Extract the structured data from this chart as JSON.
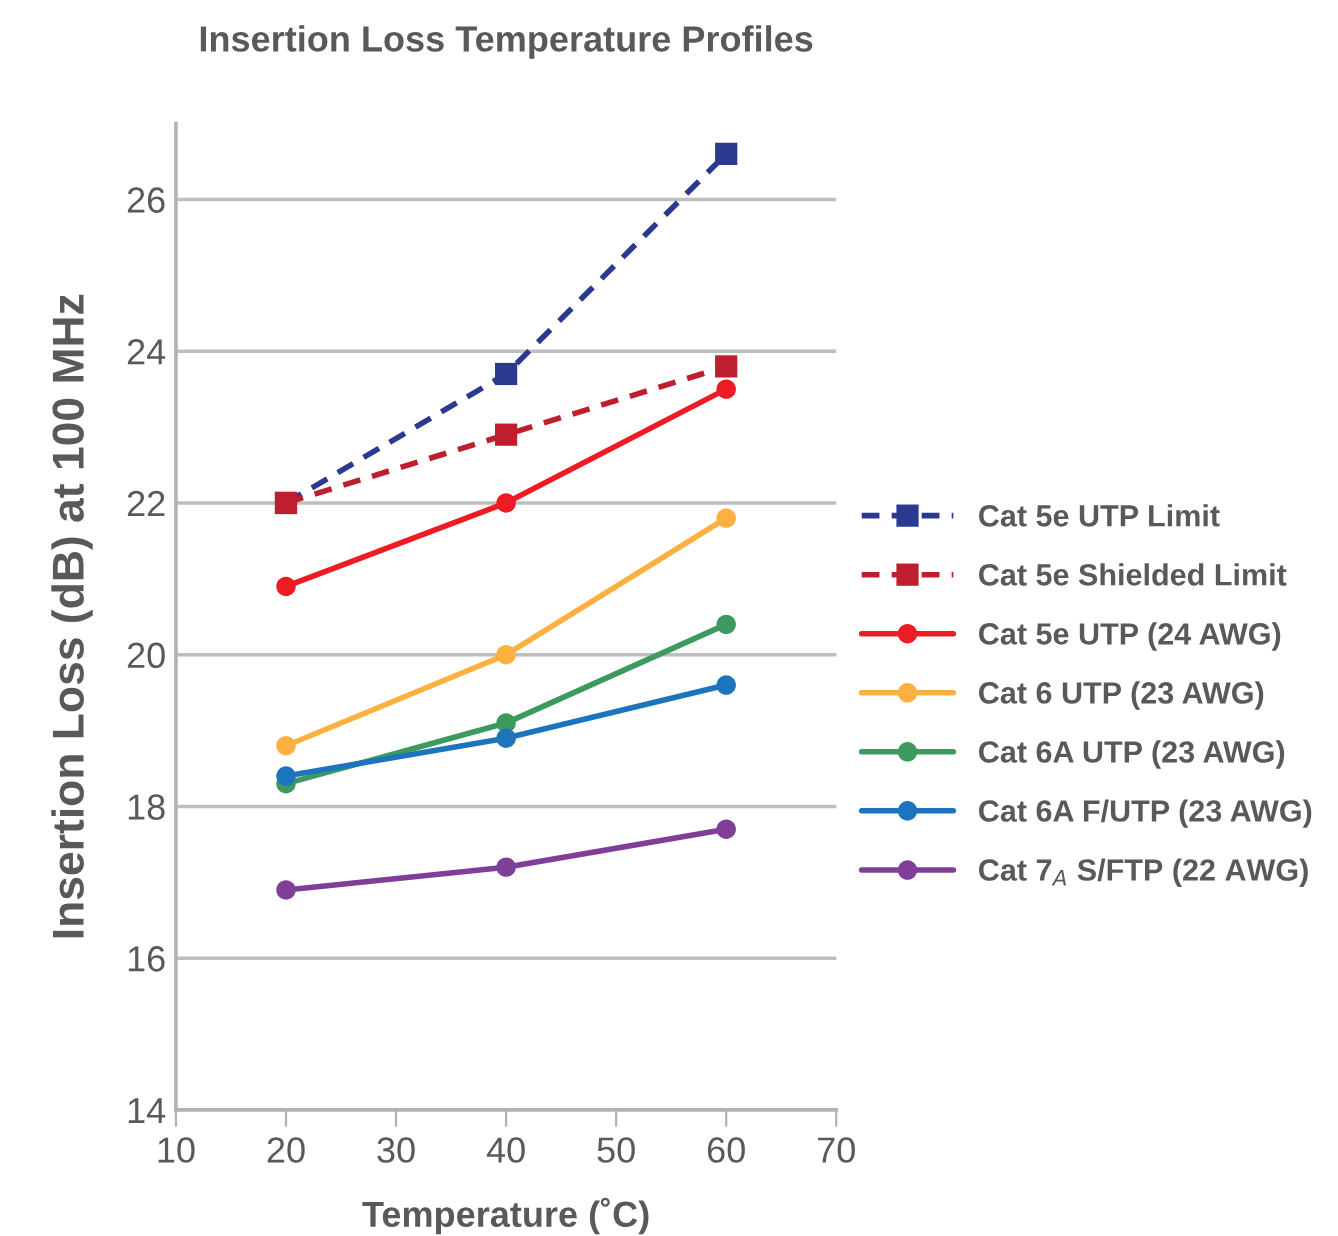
{
  "chart_data": {
    "type": "line",
    "title": "Insertion Loss Temperature Profiles",
    "xlabel": "Temperature (˚C)",
    "ylabel": "Insertion Loss (dB) at 100 MHz",
    "x": [
      20,
      40,
      60
    ],
    "xlim": [
      10,
      70
    ],
    "xticks": [
      10,
      20,
      30,
      40,
      50,
      60,
      70
    ],
    "ylim": [
      14,
      27
    ],
    "yticks": [
      14,
      16,
      18,
      20,
      22,
      24,
      26
    ],
    "grid": "y",
    "legend": "right",
    "series": [
      {
        "name": "Cat 5e UTP Limit",
        "color": "#2b3990",
        "values": [
          22.0,
          23.7,
          26.6
        ],
        "marker": "square",
        "line_style": "dashed"
      },
      {
        "name": "Cat 5e Shielded Limit",
        "color": "#be1e2d",
        "values": [
          22.0,
          22.9,
          23.8
        ],
        "marker": "square",
        "line_style": "dashed"
      },
      {
        "name": "Cat 5e UTP (24 AWG)",
        "color": "#ed1c24",
        "values": [
          20.9,
          22.0,
          23.5
        ],
        "marker": "circle",
        "line_style": "solid"
      },
      {
        "name": "Cat 6 UTP (23 AWG)",
        "color": "#fbb040",
        "values": [
          18.8,
          20.0,
          21.8
        ],
        "marker": "circle",
        "line_style": "solid"
      },
      {
        "name": "Cat 6A UTP (23 AWG)",
        "color": "#3c9a5f",
        "values": [
          18.3,
          19.1,
          20.4
        ],
        "marker": "circle",
        "line_style": "solid"
      },
      {
        "name": "Cat 6A F/UTP (23 AWG)",
        "color": "#1c75bc",
        "values": [
          18.4,
          18.9,
          19.6
        ],
        "marker": "circle",
        "line_style": "solid"
      },
      {
        "name": "Cat 7$_{A}$ S/FTP (22 AWG)",
        "color": "#7f3f98",
        "values": [
          16.9,
          17.2,
          17.7
        ],
        "marker": "circle",
        "line_style": "solid"
      }
    ]
  }
}
